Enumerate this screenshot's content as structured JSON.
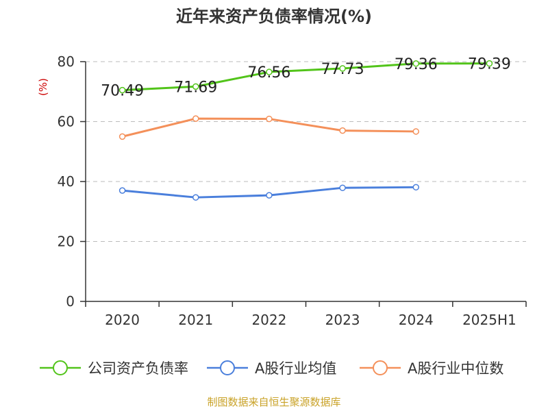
{
  "chart_data": {
    "type": "line",
    "title": "近年来资产负债率情况(%)",
    "ylabel": "(%)",
    "xlabel": "",
    "ylim": [
      0,
      80
    ],
    "yticks": [
      0,
      20,
      40,
      60,
      80
    ],
    "grid": true,
    "legend_position": "bottom",
    "categories": [
      "2020",
      "2021",
      "2022",
      "2023",
      "2024",
      "2025H1"
    ],
    "series": [
      {
        "name": "公司资产负债率",
        "color": "#52c41a",
        "values": [
          70.49,
          71.69,
          76.56,
          77.73,
          79.36,
          79.39
        ],
        "labels": [
          "70.49",
          "71.69",
          "76.56",
          "77.73",
          "79.36",
          "79.39"
        ]
      },
      {
        "name": "A股行业均值",
        "color": "#4a7fdc",
        "values": [
          37.0,
          34.7,
          35.4,
          37.9,
          38.1,
          null
        ]
      },
      {
        "name": "A股行业中位数",
        "color": "#f4905a",
        "values": [
          55.0,
          61.0,
          60.9,
          57.0,
          56.7,
          null
        ]
      }
    ]
  },
  "footer": {
    "source": "制图数据来自恒生聚源数据库",
    "source_color": "#c9a227"
  },
  "colors": {
    "axis": "#333333",
    "grid": "#bbbbbb",
    "ylabel": "#cc0000"
  }
}
